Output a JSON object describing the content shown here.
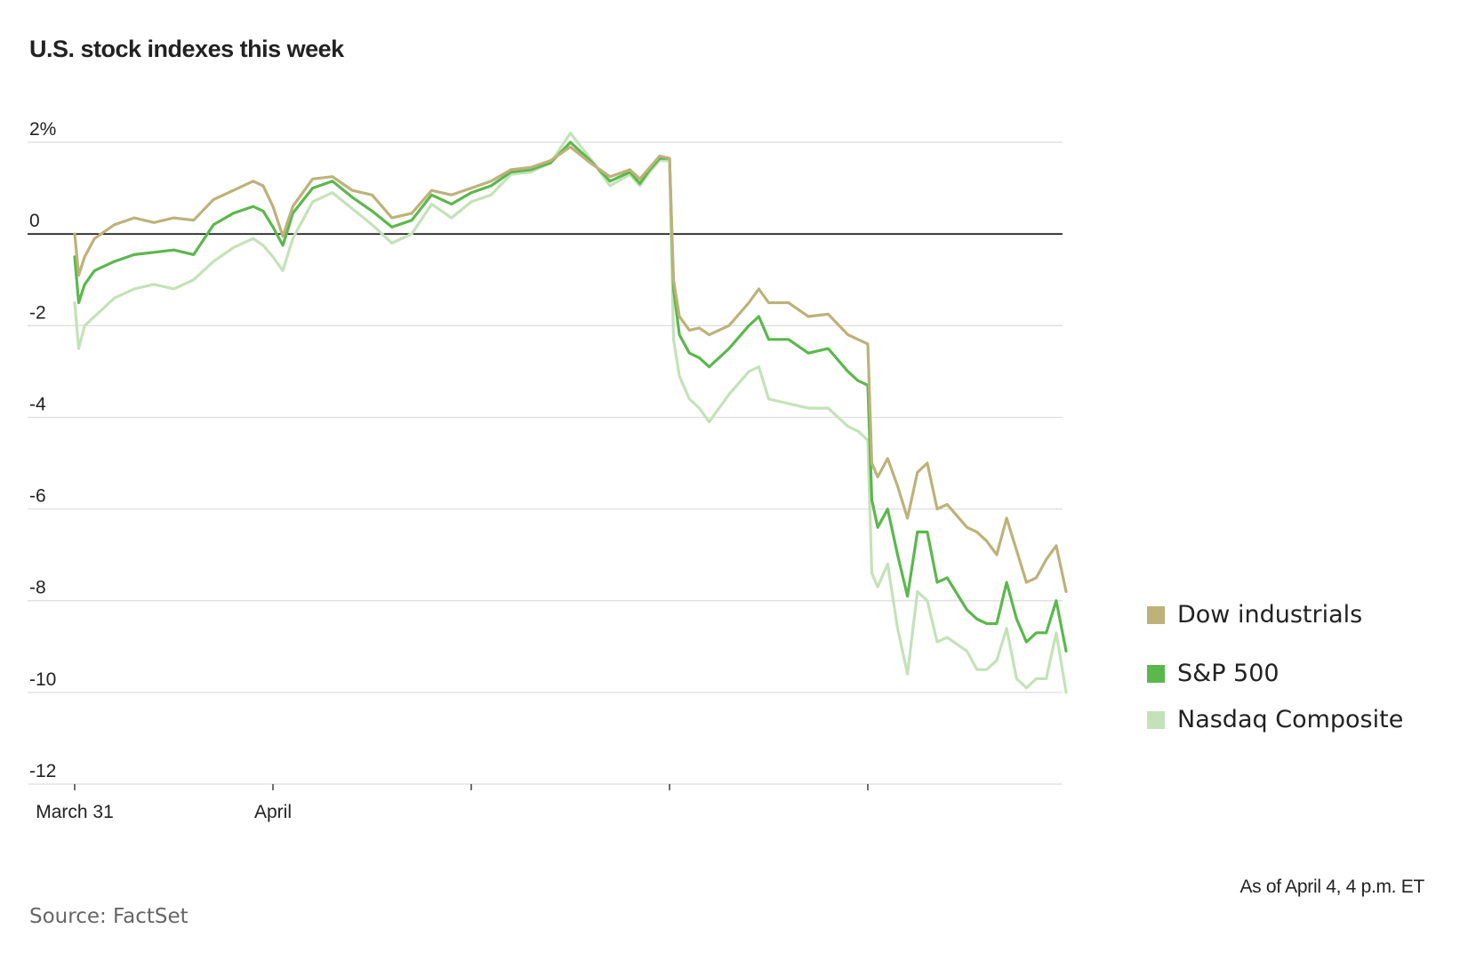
{
  "title": "U.S. stock indexes this week",
  "note": "As of April 4, 4 p.m. ET",
  "source": "Source: FactSet",
  "colors": {
    "dow": "#bdb27a",
    "sp500": "#5bb84c",
    "nasdaq": "#c4e2b8",
    "zero_line": "#111111",
    "grid": "#dddddd"
  },
  "chart_data": {
    "type": "line",
    "title": "U.S. stock indexes this week",
    "xlabel": "",
    "ylabel": "",
    "ylim": [
      -12,
      2
    ],
    "xlim": [
      0,
      5
    ],
    "y_ticks": [
      2,
      0,
      -2,
      -4,
      -6,
      -8,
      -10,
      -12
    ],
    "y_tick_labels": [
      "2%",
      "0",
      "-2",
      "-4",
      "-6",
      "-8",
      "-10",
      "-12"
    ],
    "x_ticks": [
      0,
      1,
      2,
      3,
      4
    ],
    "x_tick_labels": [
      "March 31",
      "April",
      "",
      "",
      ""
    ],
    "grid": true,
    "legend_position": "right",
    "series": [
      {
        "name": "Dow industrials",
        "x": [
          0,
          0.02,
          0.05,
          0.1,
          0.2,
          0.3,
          0.4,
          0.5,
          0.6,
          0.7,
          0.8,
          0.9,
          0.95,
          1.0,
          1.05,
          1.1,
          1.2,
          1.3,
          1.4,
          1.5,
          1.6,
          1.7,
          1.8,
          1.9,
          2.0,
          2.1,
          2.2,
          2.3,
          2.4,
          2.5,
          2.6,
          2.7,
          2.8,
          2.85,
          2.9,
          2.95,
          3.0,
          3.02,
          3.05,
          3.1,
          3.15,
          3.2,
          3.3,
          3.4,
          3.45,
          3.5,
          3.6,
          3.7,
          3.8,
          3.9,
          3.95,
          4.0,
          4.02,
          4.05,
          4.1,
          4.15,
          4.2,
          4.25,
          4.3,
          4.35,
          4.4,
          4.5,
          4.55,
          4.6,
          4.65,
          4.7,
          4.75,
          4.8,
          4.85,
          4.9,
          4.95,
          5.0
        ],
        "values": [
          0.0,
          -0.9,
          -0.5,
          -0.1,
          0.2,
          0.35,
          0.25,
          0.35,
          0.3,
          0.75,
          0.95,
          1.15,
          1.05,
          0.6,
          -0.05,
          0.6,
          1.2,
          1.25,
          0.95,
          0.85,
          0.35,
          0.45,
          0.95,
          0.85,
          1.0,
          1.15,
          1.4,
          1.45,
          1.6,
          1.9,
          1.55,
          1.25,
          1.4,
          1.2,
          1.45,
          1.7,
          1.65,
          -1.0,
          -1.8,
          -2.1,
          -2.05,
          -2.2,
          -2.0,
          -1.5,
          -1.2,
          -1.5,
          -1.5,
          -1.8,
          -1.75,
          -2.2,
          -2.3,
          -2.4,
          -5.0,
          -5.3,
          -4.9,
          -5.5,
          -6.2,
          -5.2,
          -5.0,
          -6.0,
          -5.9,
          -6.4,
          -6.5,
          -6.7,
          -7.0,
          -6.2,
          -6.9,
          -7.6,
          -7.5,
          -7.1,
          -6.8,
          -7.8
        ]
      },
      {
        "name": "S&P 500",
        "x": [
          0,
          0.02,
          0.05,
          0.1,
          0.2,
          0.3,
          0.4,
          0.5,
          0.6,
          0.7,
          0.8,
          0.9,
          0.95,
          1.0,
          1.05,
          1.1,
          1.2,
          1.3,
          1.4,
          1.5,
          1.6,
          1.7,
          1.8,
          1.9,
          2.0,
          2.1,
          2.2,
          2.3,
          2.4,
          2.5,
          2.6,
          2.7,
          2.8,
          2.85,
          2.9,
          2.95,
          3.0,
          3.02,
          3.05,
          3.1,
          3.15,
          3.2,
          3.3,
          3.4,
          3.45,
          3.5,
          3.6,
          3.7,
          3.8,
          3.9,
          3.95,
          4.0,
          4.02,
          4.05,
          4.1,
          4.15,
          4.2,
          4.25,
          4.3,
          4.35,
          4.4,
          4.5,
          4.55,
          4.6,
          4.65,
          4.7,
          4.75,
          4.8,
          4.85,
          4.9,
          4.95,
          5.0
        ],
        "values": [
          -0.5,
          -1.5,
          -1.1,
          -0.8,
          -0.6,
          -0.45,
          -0.4,
          -0.35,
          -0.45,
          0.2,
          0.45,
          0.6,
          0.5,
          0.15,
          -0.25,
          0.45,
          1.0,
          1.15,
          0.8,
          0.5,
          0.15,
          0.3,
          0.85,
          0.65,
          0.9,
          1.05,
          1.35,
          1.4,
          1.55,
          2.0,
          1.6,
          1.15,
          1.35,
          1.1,
          1.4,
          1.65,
          1.65,
          -1.2,
          -2.2,
          -2.6,
          -2.7,
          -2.9,
          -2.5,
          -2.0,
          -1.8,
          -2.3,
          -2.3,
          -2.6,
          -2.5,
          -3.0,
          -3.2,
          -3.3,
          -5.8,
          -6.4,
          -6.0,
          -7.0,
          -7.9,
          -6.5,
          -6.5,
          -7.6,
          -7.5,
          -8.2,
          -8.4,
          -8.5,
          -8.5,
          -7.6,
          -8.4,
          -8.9,
          -8.7,
          -8.7,
          -8.0,
          -9.1
        ]
      },
      {
        "name": "Nasdaq Composite",
        "x": [
          0,
          0.02,
          0.05,
          0.1,
          0.2,
          0.3,
          0.4,
          0.5,
          0.6,
          0.7,
          0.8,
          0.9,
          0.95,
          1.0,
          1.05,
          1.1,
          1.2,
          1.3,
          1.4,
          1.5,
          1.6,
          1.7,
          1.8,
          1.9,
          2.0,
          2.1,
          2.2,
          2.3,
          2.4,
          2.5,
          2.6,
          2.7,
          2.8,
          2.85,
          2.9,
          2.95,
          3.0,
          3.02,
          3.05,
          3.1,
          3.15,
          3.2,
          3.3,
          3.4,
          3.45,
          3.5,
          3.6,
          3.7,
          3.8,
          3.9,
          3.95,
          4.0,
          4.02,
          4.05,
          4.1,
          4.15,
          4.2,
          4.25,
          4.3,
          4.35,
          4.4,
          4.5,
          4.55,
          4.6,
          4.65,
          4.7,
          4.75,
          4.8,
          4.85,
          4.9,
          4.95,
          5.0
        ],
        "values": [
          -1.5,
          -2.5,
          -2.0,
          -1.8,
          -1.4,
          -1.2,
          -1.1,
          -1.2,
          -1.0,
          -0.6,
          -0.3,
          -0.1,
          -0.25,
          -0.5,
          -0.8,
          -0.1,
          0.7,
          0.9,
          0.55,
          0.2,
          -0.2,
          0.0,
          0.65,
          0.35,
          0.7,
          0.85,
          1.3,
          1.35,
          1.55,
          2.2,
          1.65,
          1.05,
          1.3,
          1.05,
          1.35,
          1.6,
          1.6,
          -2.3,
          -3.1,
          -3.6,
          -3.8,
          -4.1,
          -3.5,
          -3.0,
          -2.9,
          -3.6,
          -3.7,
          -3.8,
          -3.8,
          -4.2,
          -4.3,
          -4.5,
          -7.4,
          -7.7,
          -7.2,
          -8.6,
          -9.6,
          -7.8,
          -8.0,
          -8.9,
          -8.8,
          -9.1,
          -9.5,
          -9.5,
          -9.3,
          -8.6,
          -9.7,
          -9.9,
          -9.7,
          -9.7,
          -8.7,
          -10.0
        ]
      }
    ]
  }
}
